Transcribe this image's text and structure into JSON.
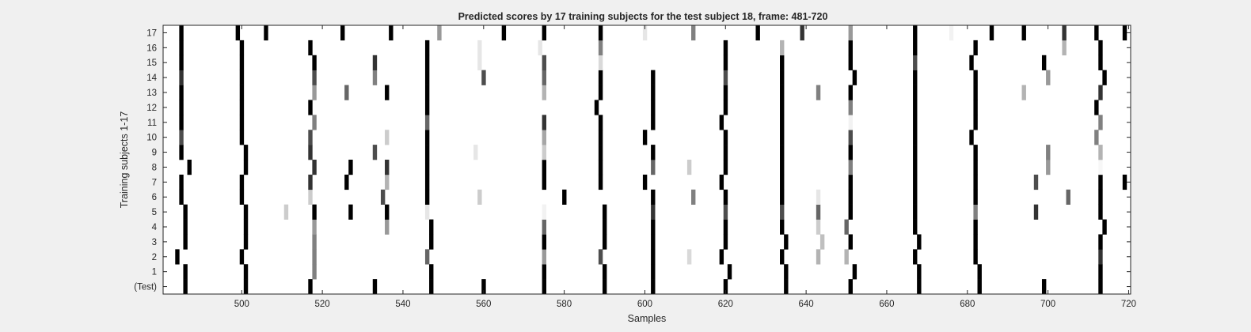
{
  "chart_data": {
    "type": "heatmap",
    "title": "Predicted scores by 17 training subjects for the test subject 18, frame: 481-720",
    "xlabel": "Samples",
    "ylabel": "Training subjects 1-17",
    "xlim": [
      481,
      720
    ],
    "x_ticks": [
      500,
      520,
      540,
      560,
      580,
      600,
      620,
      640,
      660,
      680,
      700,
      720
    ],
    "y_tick_labels": [
      "(Test)",
      "1",
      "2",
      "3",
      "4",
      "5",
      "6",
      "7",
      "8",
      "9",
      "10",
      "11",
      "12",
      "13",
      "14",
      "15",
      "16",
      "17"
    ],
    "colormap": "white (0) to black (1)",
    "rows": [
      {
        "label": "(Test)",
        "cells": [
          [
            486,
            1
          ],
          [
            501,
            1
          ],
          [
            517,
            1
          ],
          [
            533,
            1
          ],
          [
            547,
            1
          ],
          [
            560,
            1
          ],
          [
            575,
            1
          ],
          [
            590,
            1
          ],
          [
            602,
            1
          ],
          [
            620,
            1
          ],
          [
            635,
            1
          ],
          [
            651,
            1
          ],
          [
            668,
            1
          ],
          [
            683,
            1
          ],
          [
            699,
            1
          ],
          [
            713,
            1
          ]
        ]
      },
      {
        "label": "1",
        "cells": [
          [
            486,
            1
          ],
          [
            501,
            1
          ],
          [
            518,
            0.5
          ],
          [
            547,
            1
          ],
          [
            575,
            1
          ],
          [
            590,
            1
          ],
          [
            602,
            1
          ],
          [
            621,
            1
          ],
          [
            635,
            1
          ],
          [
            652,
            1
          ],
          [
            668,
            1
          ],
          [
            683,
            1
          ],
          [
            713,
            1
          ]
        ]
      },
      {
        "label": "2",
        "cells": [
          [
            484,
            1
          ],
          [
            500,
            1
          ],
          [
            518,
            0.5
          ],
          [
            546,
            0.6
          ],
          [
            575,
            0.4
          ],
          [
            589,
            0.7
          ],
          [
            602,
            1
          ],
          [
            611,
            0.15
          ],
          [
            619,
            1
          ],
          [
            634,
            1
          ],
          [
            643,
            0.3
          ],
          [
            650,
            0.3
          ],
          [
            667,
            1
          ],
          [
            682,
            1
          ],
          [
            713,
            0.8
          ]
        ]
      },
      {
        "label": "3",
        "cells": [
          [
            486,
            1
          ],
          [
            501,
            1
          ],
          [
            518,
            0.5
          ],
          [
            547,
            1
          ],
          [
            575,
            1
          ],
          [
            590,
            1
          ],
          [
            602,
            1
          ],
          [
            620,
            1
          ],
          [
            635,
            1
          ],
          [
            644,
            0.25
          ],
          [
            651,
            1
          ],
          [
            668,
            1
          ],
          [
            682,
            1
          ],
          [
            713,
            1
          ]
        ]
      },
      {
        "label": "4",
        "cells": [
          [
            486,
            1
          ],
          [
            501,
            1
          ],
          [
            518,
            0.4
          ],
          [
            536,
            0.4
          ],
          [
            547,
            1
          ],
          [
            575,
            0.6
          ],
          [
            590,
            1
          ],
          [
            602,
            1
          ],
          [
            620,
            1
          ],
          [
            634,
            1
          ],
          [
            643,
            0.2
          ],
          [
            650,
            0.6
          ],
          [
            667,
            1
          ],
          [
            682,
            1
          ],
          [
            714,
            1
          ]
        ]
      },
      {
        "label": "5",
        "cells": [
          [
            486,
            1
          ],
          [
            501,
            1
          ],
          [
            511,
            0.2
          ],
          [
            518,
            1
          ],
          [
            527,
            1
          ],
          [
            536,
            1
          ],
          [
            546,
            0.1
          ],
          [
            575,
            0.05
          ],
          [
            590,
            1
          ],
          [
            602,
            0.8
          ],
          [
            620,
            0.7
          ],
          [
            634,
            0.7
          ],
          [
            643,
            0.6
          ],
          [
            651,
            1
          ],
          [
            667,
            1
          ],
          [
            682,
            0.5
          ],
          [
            697,
            0.8
          ],
          [
            713,
            1
          ]
        ]
      },
      {
        "label": "6",
        "cells": [
          [
            485,
            1
          ],
          [
            500,
            1
          ],
          [
            517,
            0.2
          ],
          [
            535,
            0.7
          ],
          [
            546,
            1
          ],
          [
            559,
            0.2
          ],
          [
            580,
            1
          ],
          [
            602,
            1
          ],
          [
            612,
            0.5
          ],
          [
            620,
            1
          ],
          [
            634,
            1
          ],
          [
            643,
            0.1
          ],
          [
            651,
            1
          ],
          [
            667,
            1
          ],
          [
            682,
            1
          ],
          [
            705,
            0.6
          ],
          [
            713,
            1
          ]
        ]
      },
      {
        "label": "7",
        "cells": [
          [
            485,
            1
          ],
          [
            500,
            1
          ],
          [
            517,
            0.8
          ],
          [
            526,
            1
          ],
          [
            536,
            0.3
          ],
          [
            546,
            1
          ],
          [
            575,
            1
          ],
          [
            589,
            1
          ],
          [
            600,
            1
          ],
          [
            619,
            1
          ],
          [
            634,
            1
          ],
          [
            651,
            1
          ],
          [
            667,
            1
          ],
          [
            682,
            1
          ],
          [
            697,
            0.7
          ],
          [
            713,
            1
          ],
          [
            719,
            1
          ]
        ]
      },
      {
        "label": "8",
        "cells": [
          [
            487,
            1
          ],
          [
            501,
            1
          ],
          [
            518,
            0.8
          ],
          [
            527,
            1
          ],
          [
            536,
            0.8
          ],
          [
            546,
            1
          ],
          [
            575,
            1
          ],
          [
            589,
            1
          ],
          [
            602,
            0.6
          ],
          [
            611,
            0.2
          ],
          [
            620,
            1
          ],
          [
            634,
            1
          ],
          [
            651,
            0.5
          ],
          [
            667,
            1
          ],
          [
            682,
            1
          ],
          [
            700,
            0.4
          ],
          [
            713,
            0.03
          ]
        ]
      },
      {
        "label": "9",
        "cells": [
          [
            485,
            1
          ],
          [
            501,
            1
          ],
          [
            517,
            0.8
          ],
          [
            533,
            0.7
          ],
          [
            546,
            1
          ],
          [
            558,
            0.1
          ],
          [
            575,
            0.2
          ],
          [
            589,
            1
          ],
          [
            602,
            1
          ],
          [
            620,
            1
          ],
          [
            634,
            1
          ],
          [
            651,
            1
          ],
          [
            667,
            1
          ],
          [
            682,
            1
          ],
          [
            700,
            0.5
          ],
          [
            713,
            0.3
          ]
        ]
      },
      {
        "label": "10",
        "cells": [
          [
            485,
            0.7
          ],
          [
            500,
            1
          ],
          [
            517,
            0.7
          ],
          [
            536,
            0.2
          ],
          [
            546,
            1
          ],
          [
            575,
            0.35
          ],
          [
            589,
            1
          ],
          [
            600,
            1
          ],
          [
            620,
            1
          ],
          [
            634,
            1
          ],
          [
            651,
            0.7
          ],
          [
            667,
            1
          ],
          [
            681,
            1
          ],
          [
            712,
            0.5
          ]
        ]
      },
      {
        "label": "11",
        "cells": [
          [
            485,
            1
          ],
          [
            500,
            1
          ],
          [
            518,
            0.5
          ],
          [
            546,
            0.6
          ],
          [
            575,
            0.8
          ],
          [
            589,
            1
          ],
          [
            602,
            1
          ],
          [
            619,
            1
          ],
          [
            634,
            1
          ],
          [
            651,
            0.05
          ],
          [
            667,
            1
          ],
          [
            682,
            1
          ],
          [
            713,
            0.5
          ]
        ]
      },
      {
        "label": "12",
        "cells": [
          [
            485,
            1
          ],
          [
            500,
            1
          ],
          [
            517,
            1
          ],
          [
            546,
            1
          ],
          [
            588,
            1
          ],
          [
            602,
            1
          ],
          [
            620,
            1
          ],
          [
            634,
            1
          ],
          [
            651,
            0.5
          ],
          [
            667,
            1
          ],
          [
            682,
            1
          ],
          [
            712,
            1
          ]
        ]
      },
      {
        "label": "13",
        "cells": [
          [
            485,
            1
          ],
          [
            500,
            1
          ],
          [
            518,
            0.4
          ],
          [
            526,
            0.6
          ],
          [
            536,
            1
          ],
          [
            546,
            1
          ],
          [
            575,
            0.3
          ],
          [
            589,
            1
          ],
          [
            602,
            1
          ],
          [
            620,
            1
          ],
          [
            634,
            1
          ],
          [
            643,
            0.5
          ],
          [
            651,
            1
          ],
          [
            667,
            1
          ],
          [
            682,
            1
          ],
          [
            694,
            0.3
          ],
          [
            713,
            0.8
          ]
        ]
      },
      {
        "label": "14",
        "cells": [
          [
            485,
            0.8
          ],
          [
            500,
            1
          ],
          [
            518,
            0.7
          ],
          [
            533,
            0.5
          ],
          [
            546,
            1
          ],
          [
            560,
            0.7
          ],
          [
            575,
            0.6
          ],
          [
            589,
            1
          ],
          [
            602,
            1
          ],
          [
            620,
            0.7
          ],
          [
            634,
            1
          ],
          [
            652,
            1
          ],
          [
            667,
            1
          ],
          [
            682,
            1
          ],
          [
            700,
            0.4
          ],
          [
            714,
            1
          ]
        ]
      },
      {
        "label": "15",
        "cells": [
          [
            485,
            1
          ],
          [
            500,
            1
          ],
          [
            518,
            1
          ],
          [
            533,
            0.8
          ],
          [
            546,
            1
          ],
          [
            559,
            0.1
          ],
          [
            575,
            0.7
          ],
          [
            589,
            0.15
          ],
          [
            620,
            1
          ],
          [
            634,
            1
          ],
          [
            651,
            1
          ],
          [
            667,
            0.7
          ],
          [
            681,
            1
          ],
          [
            699,
            1
          ],
          [
            713,
            1
          ]
        ]
      },
      {
        "label": "16",
        "cells": [
          [
            485,
            1
          ],
          [
            500,
            1
          ],
          [
            517,
            1
          ],
          [
            546,
            1
          ],
          [
            559,
            0.1
          ],
          [
            574,
            0.1
          ],
          [
            589,
            0.5
          ],
          [
            620,
            1
          ],
          [
            634,
            0.3
          ],
          [
            651,
            1
          ],
          [
            667,
            1
          ],
          [
            682,
            1
          ],
          [
            704,
            0.3
          ],
          [
            713,
            1
          ]
        ]
      },
      {
        "label": "17",
        "cells": [
          [
            485,
            1
          ],
          [
            499,
            1
          ],
          [
            506,
            1
          ],
          [
            525,
            1
          ],
          [
            537,
            1
          ],
          [
            549,
            0.4
          ],
          [
            565,
            1
          ],
          [
            575,
            1
          ],
          [
            589,
            1
          ],
          [
            600,
            0.1
          ],
          [
            612,
            0.5
          ],
          [
            628,
            1
          ],
          [
            639,
            0.8
          ],
          [
            651,
            0.4
          ],
          [
            667,
            1
          ],
          [
            676,
            0.05
          ],
          [
            686,
            1
          ],
          [
            694,
            1
          ],
          [
            704,
            0.8
          ],
          [
            712,
            1
          ],
          [
            719,
            1
          ]
        ]
      }
    ],
    "grid": false,
    "legend": "none"
  }
}
